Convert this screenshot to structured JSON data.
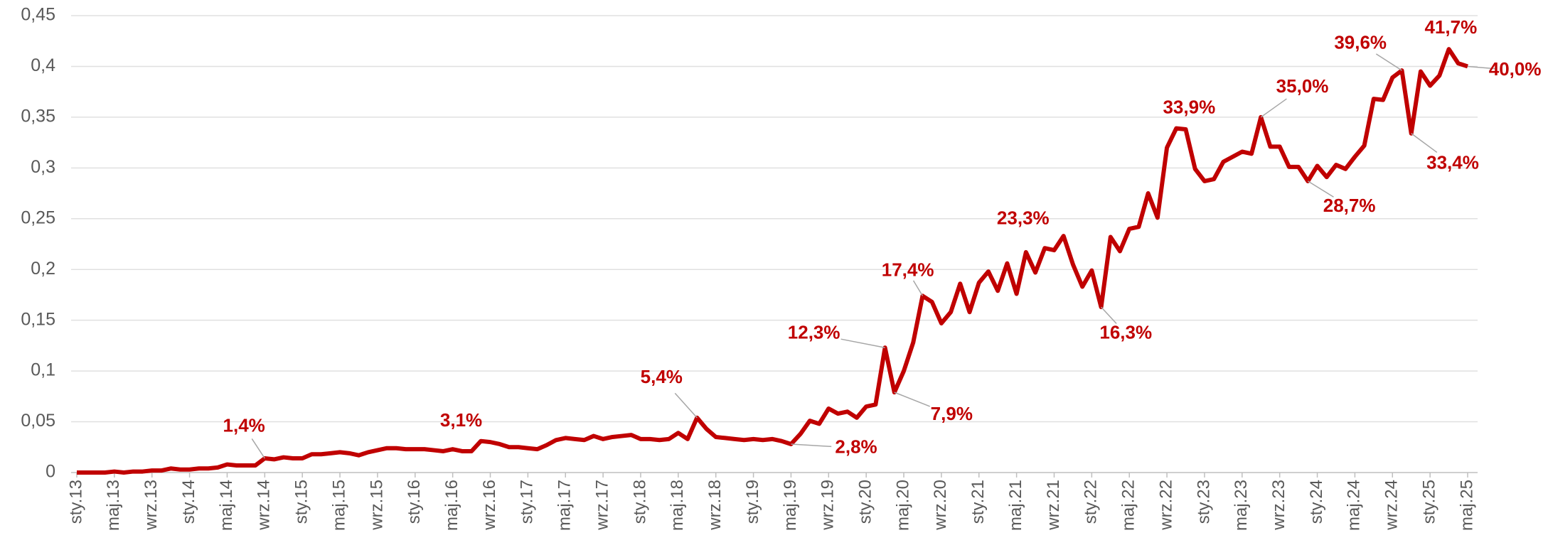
{
  "chart_data": {
    "type": "line",
    "categories": [
      "sty.13",
      null,
      null,
      null,
      "maj.13",
      null,
      null,
      null,
      "wrz.13",
      null,
      null,
      null,
      "sty.14",
      null,
      null,
      null,
      "maj.14",
      null,
      null,
      null,
      "wrz.14",
      null,
      null,
      null,
      "sty.15",
      null,
      null,
      null,
      "maj.15",
      null,
      null,
      null,
      "wrz.15",
      null,
      null,
      null,
      "sty.16",
      null,
      null,
      null,
      "maj.16",
      null,
      null,
      null,
      "wrz.16",
      null,
      null,
      null,
      "sty.17",
      null,
      null,
      null,
      "maj.17",
      null,
      null,
      null,
      "wrz.17",
      null,
      null,
      null,
      "sty.18",
      null,
      null,
      null,
      "maj.18",
      null,
      null,
      null,
      "wrz.18",
      null,
      null,
      null,
      "sty.19",
      null,
      null,
      null,
      "maj.19",
      null,
      null,
      null,
      "wrz.19",
      null,
      null,
      null,
      "sty.20",
      null,
      null,
      null,
      "maj.20",
      null,
      null,
      null,
      "wrz.20",
      null,
      null,
      null,
      "sty.21",
      null,
      null,
      null,
      "maj.21",
      null,
      null,
      null,
      "wrz.21",
      null,
      null,
      null,
      "sty.22",
      null,
      null,
      null,
      "maj.22",
      null,
      null,
      null,
      "wrz.22",
      null,
      null,
      null,
      "sty.23",
      null,
      null,
      null,
      "maj.23",
      null,
      null,
      null,
      "wrz.23",
      null,
      null,
      null,
      "sty.24",
      null,
      null,
      null,
      "maj.24",
      null,
      null,
      null,
      "wrz.24",
      null,
      null,
      null,
      "sty.25",
      null,
      null,
      null,
      "maj.25"
    ],
    "series": [
      {
        "color": "#c00000",
        "values": [
          0,
          0,
          0,
          0,
          0.001,
          0,
          0.001,
          0.001,
          0.002,
          0.002,
          0.004,
          0.003,
          0.003,
          0.004,
          0.004,
          0.005,
          0.008,
          0.007,
          0.007,
          0.007,
          0.014,
          0.013,
          0.015,
          0.014,
          0.014,
          0.018,
          0.018,
          0.019,
          0.02,
          0.019,
          0.017,
          0.02,
          0.022,
          0.024,
          0.024,
          0.023,
          0.023,
          0.023,
          0.022,
          0.021,
          0.023,
          0.021,
          0.021,
          0.031,
          0.03,
          0.028,
          0.025,
          0.025,
          0.024,
          0.023,
          0.027,
          0.032,
          0.034,
          0.033,
          0.032,
          0.036,
          0.033,
          0.035,
          0.036,
          0.037,
          0.033,
          0.033,
          0.032,
          0.033,
          0.039,
          0.033,
          0.054,
          0.043,
          0.035,
          0.034,
          0.033,
          0.032,
          0.033,
          0.032,
          0.033,
          0.031,
          0.028,
          0.038,
          0.051,
          0.048,
          0.063,
          0.058,
          0.06,
          0.054,
          0.065,
          0.067,
          0.123,
          0.079,
          0.1,
          0.128,
          0.174,
          0.168,
          0.147,
          0.158,
          0.186,
          0.158,
          0.187,
          0.198,
          0.179,
          0.206,
          0.176,
          0.217,
          0.197,
          0.221,
          0.219,
          0.233,
          0.205,
          0.183,
          0.199,
          0.163,
          0.232,
          0.218,
          0.24,
          0.242,
          0.275,
          0.251,
          0.32,
          0.339,
          0.338,
          0.299,
          0.287,
          0.289,
          0.306,
          0.311,
          0.316,
          0.314,
          0.35,
          0.321,
          0.321,
          0.301,
          0.301,
          0.287,
          0.302,
          0.291,
          0.303,
          0.299,
          0.311,
          0.322,
          0.368,
          0.367,
          0.389,
          0.396,
          0.334,
          0.395,
          0.381,
          0.391,
          0.417,
          0.403,
          0.4
        ],
        "value_labels": [
          null,
          null,
          null,
          null,
          null,
          null,
          null,
          null,
          null,
          null,
          null,
          null,
          null,
          null,
          null,
          null,
          null,
          null,
          null,
          null,
          "1,4%",
          null,
          null,
          null,
          null,
          null,
          null,
          null,
          null,
          null,
          null,
          null,
          null,
          null,
          null,
          null,
          null,
          null,
          null,
          null,
          null,
          null,
          null,
          "3,1%",
          null,
          null,
          null,
          null,
          null,
          null,
          null,
          null,
          null,
          null,
          null,
          null,
          null,
          null,
          null,
          null,
          null,
          null,
          null,
          null,
          null,
          null,
          "5,4%",
          null,
          null,
          null,
          null,
          null,
          null,
          null,
          null,
          null,
          "2,8%",
          null,
          null,
          null,
          null,
          null,
          null,
          null,
          null,
          null,
          "12,3%",
          "7,9%",
          null,
          null,
          "17,4%",
          null,
          null,
          null,
          null,
          null,
          null,
          null,
          null,
          null,
          null,
          null,
          null,
          null,
          null,
          "23,3%",
          null,
          null,
          null,
          "16,3%",
          null,
          null,
          null,
          null,
          null,
          null,
          null,
          "33,9%",
          null,
          null,
          null,
          null,
          null,
          null,
          null,
          null,
          "35,0%",
          null,
          null,
          null,
          null,
          "28,7%",
          null,
          null,
          null,
          null,
          null,
          null,
          null,
          null,
          null,
          "39,6%",
          "33,4%",
          null,
          null,
          null,
          "41,7%",
          null,
          "40,0%"
        ]
      }
    ],
    "ylim": [
      0,
      0.45
    ],
    "yticks": [
      0,
      {
        "value": 0.05,
        "label": "0,05"
      },
      {
        "value": 0.1,
        "label": "0,1"
      },
      {
        "value": 0.15,
        "label": "0,15"
      },
      {
        "value": 0.2,
        "label": "0,2"
      },
      {
        "value": 0.25,
        "label": "0,25"
      },
      {
        "value": 0.3,
        "label": "0,3"
      },
      {
        "value": 0.35,
        "label": "0,35"
      },
      {
        "value": 0.4,
        "label": "0,4"
      },
      {
        "value": 0.45,
        "label": "0,45"
      }
    ],
    "grid": true
  }
}
